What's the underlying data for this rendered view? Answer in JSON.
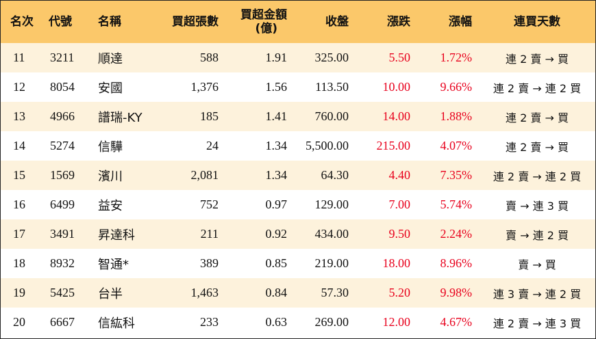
{
  "headers": {
    "rank": "名次",
    "code": "代號",
    "name": "名稱",
    "net_buy_lots": "買超張數",
    "net_buy_amount_line1": "買超金額",
    "net_buy_amount_line2": "(億)",
    "close": "收盤",
    "change": "漲跌",
    "change_pct": "漲幅",
    "streak": "連買天數"
  },
  "rows": [
    {
      "rank": "11",
      "code": "3211",
      "name": "順達",
      "lots": "588",
      "amount": "1.91",
      "close": "325.00",
      "change": "5.50",
      "pct": "1.72%",
      "streak": "連 2 賣 → 買"
    },
    {
      "rank": "12",
      "code": "8054",
      "name": "安國",
      "lots": "1,376",
      "amount": "1.56",
      "close": "113.50",
      "change": "10.00",
      "pct": "9.66%",
      "streak": "連 2 賣 → 連 2 買"
    },
    {
      "rank": "13",
      "code": "4966",
      "name": "譜瑞-KY",
      "lots": "185",
      "amount": "1.41",
      "close": "760.00",
      "change": "14.00",
      "pct": "1.88%",
      "streak": "連 2 賣 → 買"
    },
    {
      "rank": "14",
      "code": "5274",
      "name": "信驊",
      "lots": "24",
      "amount": "1.34",
      "close": "5,500.00",
      "change": "215.00",
      "pct": "4.07%",
      "streak": "連 2 賣 → 買"
    },
    {
      "rank": "15",
      "code": "1569",
      "name": "濱川",
      "lots": "2,081",
      "amount": "1.34",
      "close": "64.30",
      "change": "4.40",
      "pct": "7.35%",
      "streak": "連 2 賣 → 連 2 買"
    },
    {
      "rank": "16",
      "code": "6499",
      "name": "益安",
      "lots": "752",
      "amount": "0.97",
      "close": "129.00",
      "change": "7.00",
      "pct": "5.74%",
      "streak": "賣 → 連 3 買"
    },
    {
      "rank": "17",
      "code": "3491",
      "name": "昇達科",
      "lots": "211",
      "amount": "0.92",
      "close": "434.00",
      "change": "9.50",
      "pct": "2.24%",
      "streak": "賣 → 連 2 買"
    },
    {
      "rank": "18",
      "code": "8932",
      "name": "智通*",
      "lots": "389",
      "amount": "0.85",
      "close": "219.00",
      "change": "18.00",
      "pct": "8.96%",
      "streak": "賣 → 買"
    },
    {
      "rank": "19",
      "code": "5425",
      "name": "台半",
      "lots": "1,463",
      "amount": "0.84",
      "close": "57.30",
      "change": "5.20",
      "pct": "9.98%",
      "streak": "連 3 賣 → 連 2 買"
    },
    {
      "rank": "20",
      "code": "6667",
      "name": "信紘科",
      "lots": "233",
      "amount": "0.63",
      "close": "269.00",
      "change": "12.00",
      "pct": "4.67%",
      "streak": "連 2 賣 → 連 3 買"
    }
  ],
  "colors": {
    "header_bg": "#fbc86a",
    "odd_row_bg": "#fdf2dc",
    "even_row_bg": "#ffffff",
    "positive": "#e8001c"
  }
}
